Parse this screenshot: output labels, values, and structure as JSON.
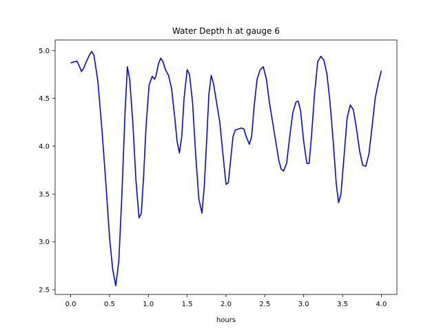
{
  "chart_data": {
    "type": "line",
    "title": "Water Depth h at gauge 6",
    "xlabel": "hours",
    "ylabel": "",
    "xlim": [
      -0.2,
      4.2
    ],
    "ylim": [
      2.45,
      5.11
    ],
    "xticks": [
      0.0,
      0.5,
      1.0,
      1.5,
      2.0,
      2.5,
      3.0,
      3.5,
      4.0
    ],
    "xtick_labels": [
      "0.0",
      "0.5",
      "1.0",
      "1.5",
      "2.0",
      "2.5",
      "3.0",
      "3.5",
      "4.0"
    ],
    "yticks": [
      2.5,
      3.0,
      3.5,
      4.0,
      4.5,
      5.0
    ],
    "ytick_labels": [
      "2.5",
      "3.0",
      "3.5",
      "4.0",
      "4.5",
      "5.0"
    ],
    "grid": false,
    "color": "#0000ff",
    "series": [
      {
        "x": [
          0.0,
          0.04,
          0.08,
          0.11,
          0.14,
          0.17,
          0.2,
          0.24,
          0.27,
          0.3,
          0.35,
          0.4,
          0.45,
          0.5,
          0.54,
          0.58,
          0.62,
          0.66,
          0.7,
          0.73,
          0.76,
          0.8,
          0.84,
          0.88,
          0.91,
          0.94,
          0.97,
          1.01,
          1.05,
          1.08,
          1.1,
          1.13,
          1.16,
          1.19,
          1.22,
          1.26,
          1.3,
          1.34,
          1.37,
          1.4,
          1.43,
          1.46,
          1.5,
          1.53,
          1.57,
          1.61,
          1.65,
          1.69,
          1.72,
          1.75,
          1.78,
          1.81,
          1.84,
          1.88,
          1.92,
          1.96,
          2.0,
          2.03,
          2.06,
          2.09,
          2.12,
          2.16,
          2.2,
          2.23,
          2.26,
          2.3,
          2.33,
          2.36,
          2.4,
          2.44,
          2.48,
          2.52,
          2.56,
          2.6,
          2.64,
          2.68,
          2.71,
          2.74,
          2.78,
          2.82,
          2.86,
          2.9,
          2.93,
          2.96,
          3.0,
          3.04,
          3.07,
          3.1,
          3.14,
          3.18,
          3.22,
          3.26,
          3.3,
          3.34,
          3.38,
          3.42,
          3.45,
          3.48,
          3.52,
          3.56,
          3.6,
          3.64,
          3.68,
          3.72,
          3.76,
          3.8,
          3.84,
          3.88,
          3.92,
          3.96,
          4.0
        ],
        "y": [
          4.87,
          4.88,
          4.89,
          4.84,
          4.78,
          4.82,
          4.88,
          4.95,
          4.99,
          4.95,
          4.68,
          4.2,
          3.65,
          3.05,
          2.72,
          2.54,
          2.8,
          3.5,
          4.35,
          4.83,
          4.7,
          4.25,
          3.65,
          3.25,
          3.3,
          3.7,
          4.2,
          4.64,
          4.73,
          4.7,
          4.74,
          4.86,
          4.92,
          4.88,
          4.8,
          4.74,
          4.6,
          4.3,
          4.05,
          3.93,
          4.1,
          4.5,
          4.8,
          4.75,
          4.45,
          3.9,
          3.45,
          3.3,
          3.58,
          4.05,
          4.55,
          4.74,
          4.65,
          4.45,
          4.25,
          3.92,
          3.6,
          3.62,
          3.86,
          4.1,
          4.17,
          4.18,
          4.19,
          4.18,
          4.1,
          4.02,
          4.1,
          4.4,
          4.7,
          4.8,
          4.83,
          4.7,
          4.45,
          4.25,
          4.05,
          3.85,
          3.76,
          3.74,
          3.82,
          4.1,
          4.35,
          4.46,
          4.47,
          4.37,
          4.05,
          3.82,
          3.82,
          4.1,
          4.55,
          4.88,
          4.94,
          4.9,
          4.75,
          4.45,
          4.05,
          3.6,
          3.41,
          3.5,
          3.9,
          4.3,
          4.43,
          4.38,
          4.18,
          3.95,
          3.8,
          3.79,
          3.92,
          4.2,
          4.5,
          4.66,
          4.79
        ]
      }
    ]
  }
}
